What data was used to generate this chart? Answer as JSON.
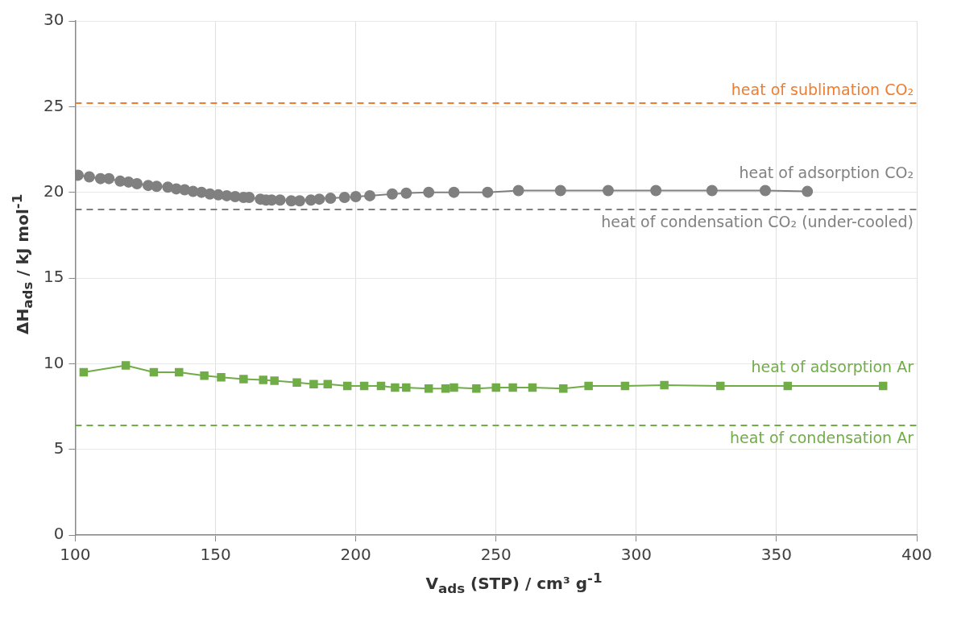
{
  "chart_data": {
    "type": "line",
    "xlabel": "V$_{ads}$ (STP) / cm³ g$^{-1}$",
    "ylabel": "ΔH$_{ads}$ / kJ mol$^{-1}$",
    "xlim": [
      100,
      400
    ],
    "xticks": [
      100,
      150,
      200,
      250,
      300,
      350,
      400
    ],
    "ylim": [
      0,
      30
    ],
    "yticks": [
      0,
      5,
      10,
      15,
      20,
      25,
      30
    ],
    "grid": true,
    "legend": false,
    "line_style": "solid",
    "series": [
      {
        "name": "heat of adsorption CO₂",
        "color": "#808080",
        "marker": "circle",
        "x": [
          101,
          105,
          109,
          112,
          116,
          119,
          122,
          126,
          129,
          133,
          136,
          139,
          142,
          145,
          148,
          151,
          154,
          157,
          160,
          162,
          166,
          168,
          170,
          173,
          177,
          180,
          184,
          187,
          191,
          196,
          200,
          205,
          213,
          218,
          226,
          235,
          247,
          258,
          273,
          290,
          307,
          327,
          346,
          361
        ],
        "values": [
          21.0,
          20.9,
          20.8,
          20.8,
          20.65,
          20.6,
          20.5,
          20.4,
          20.35,
          20.3,
          20.2,
          20.15,
          20.05,
          20.0,
          19.9,
          19.85,
          19.8,
          19.75,
          19.7,
          19.7,
          19.6,
          19.55,
          19.55,
          19.55,
          19.5,
          19.5,
          19.55,
          19.6,
          19.65,
          19.7,
          19.75,
          19.8,
          19.9,
          19.95,
          20.0,
          20.0,
          20.0,
          20.1,
          20.1,
          20.1,
          20.1,
          20.1,
          20.1,
          20.05
        ]
      },
      {
        "name": "heat of adsorption Ar",
        "color": "#70ad47",
        "marker": "square",
        "x": [
          103,
          118,
          128,
          137,
          146,
          152,
          160,
          167,
          171,
          179,
          185,
          190,
          197,
          203,
          209,
          214,
          218,
          226,
          232,
          235,
          243,
          250,
          256,
          263,
          274,
          283,
          296,
          310,
          330,
          354,
          388
        ],
        "values": [
          9.5,
          9.9,
          9.5,
          9.5,
          9.3,
          9.2,
          9.1,
          9.05,
          9.0,
          8.9,
          8.8,
          8.8,
          8.7,
          8.7,
          8.7,
          8.6,
          8.6,
          8.55,
          8.55,
          8.6,
          8.55,
          8.6,
          8.6,
          8.6,
          8.55,
          8.7,
          8.7,
          8.75,
          8.7,
          8.7,
          8.7
        ]
      }
    ],
    "ref_lines": [
      {
        "axis": "y",
        "value": 25.2,
        "label": "heat of sublimation CO₂",
        "color": "#ed7d31",
        "line_style": "dashed"
      },
      {
        "axis": "y",
        "value": 19.0,
        "label": "heat of condensation CO₂ (under-cooled)",
        "color": "#808080",
        "line_style": "dashed"
      },
      {
        "axis": "y",
        "value": 6.4,
        "label": "heat of condensation Ar",
        "color": "#70ad47",
        "line_style": "dashed"
      }
    ]
  }
}
